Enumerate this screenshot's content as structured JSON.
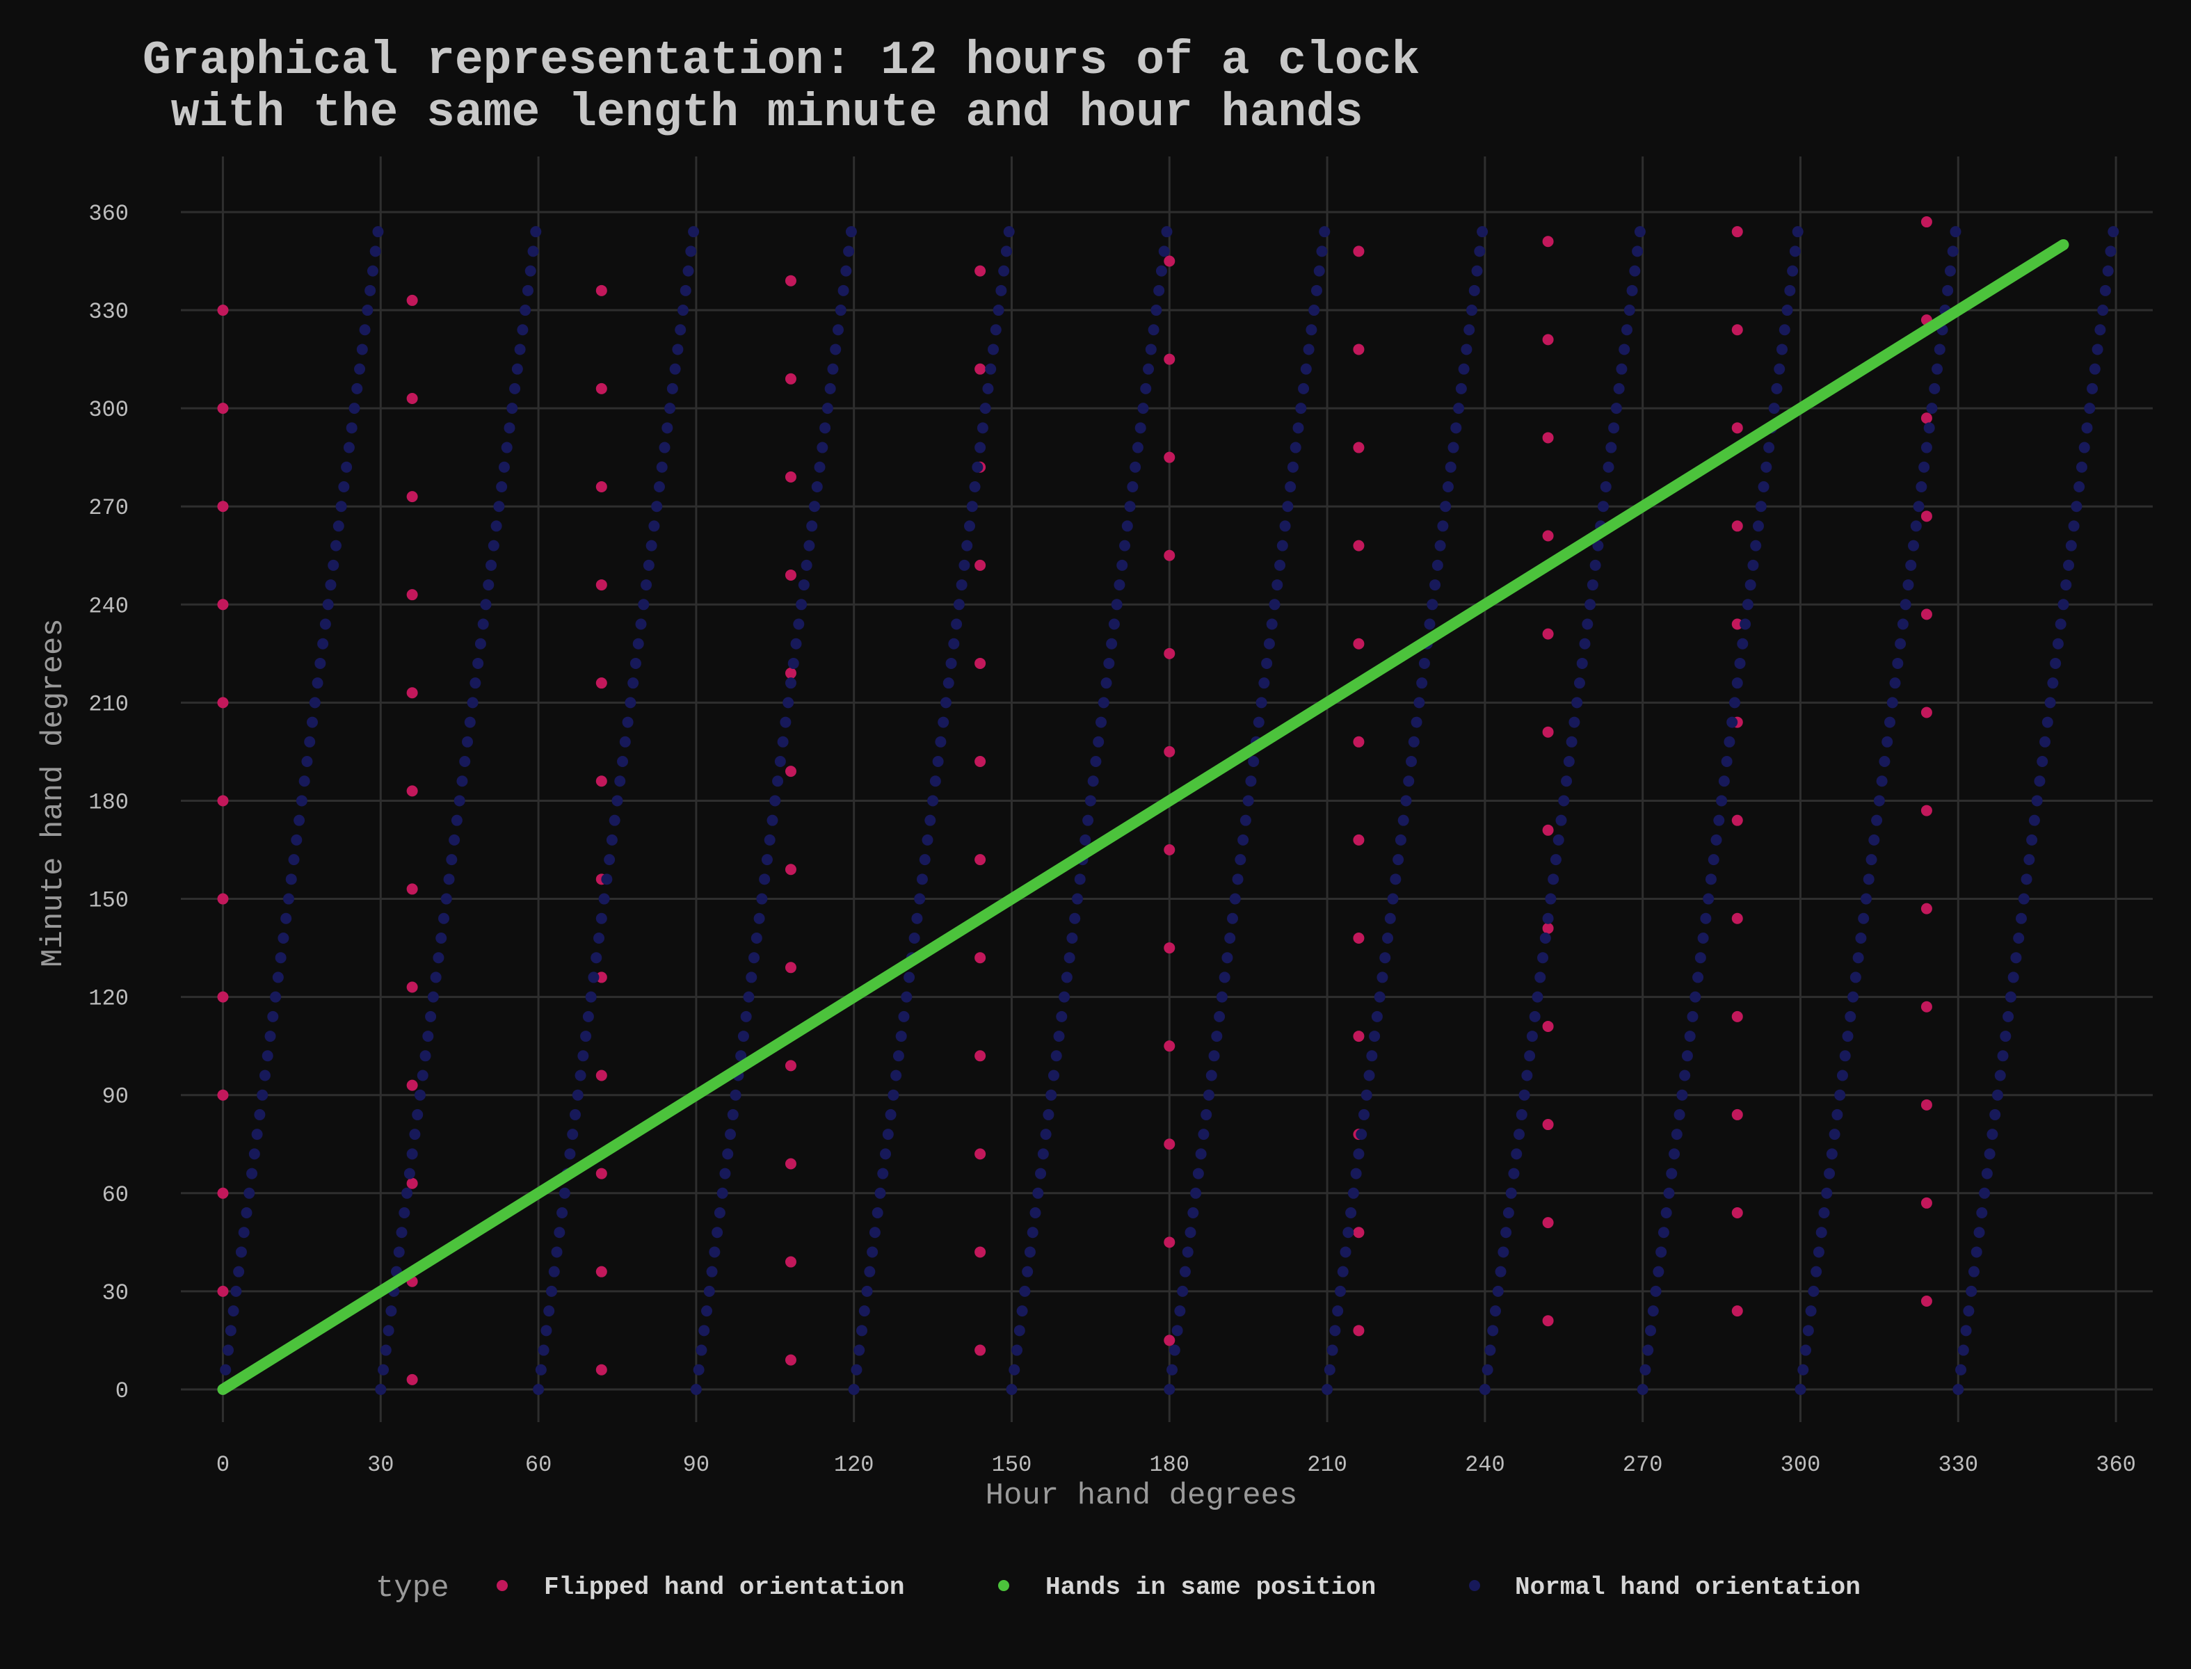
{
  "chart_data": {
    "type": "scatter",
    "title_line1": "Graphical representation: 12 hours of a clock",
    "title_line2": " with the same length minute and hour hands",
    "xlabel": "Hour hand degrees",
    "ylabel": "Minute hand degrees",
    "xlim": [
      -8,
      367
    ],
    "ylim": [
      -10,
      377
    ],
    "xticks": [
      0,
      30,
      60,
      90,
      120,
      150,
      180,
      210,
      240,
      270,
      300,
      330,
      360
    ],
    "yticks": [
      0,
      30,
      60,
      90,
      120,
      150,
      180,
      210,
      240,
      270,
      300,
      330,
      360
    ],
    "grid": true,
    "legend_position": "bottom",
    "legend_title": "type",
    "series": [
      {
        "name": "Flipped hand orientation",
        "color": "#c2185b",
        "rule": "For every sampled time: x = minute hand angle, y = hour hand angle (hands swapped)"
      },
      {
        "name": "Hands in same position",
        "color": "#4cc33c",
        "x": [
          0,
          350
        ],
        "y": [
          0,
          350
        ]
      },
      {
        "name": "Normal hand orientation",
        "color": "#17195a",
        "rule": "For every sampled time: x = hour hand angle, y = minute hand angle"
      }
    ]
  }
}
